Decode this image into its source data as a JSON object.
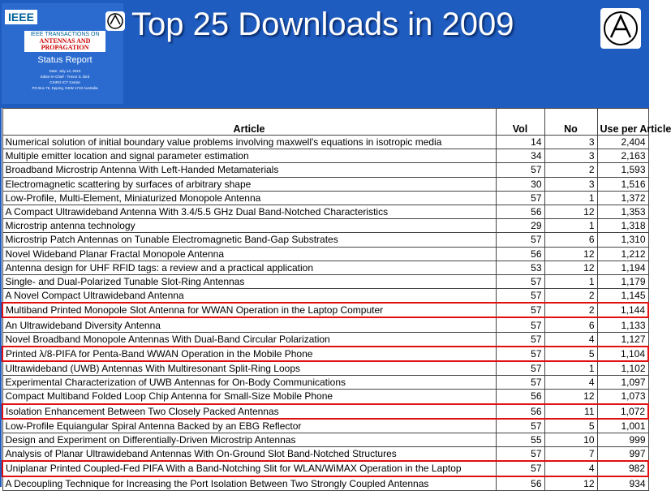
{
  "header": {
    "logo": "IEEE",
    "journal": "IEEE TRANSACTIONS ON",
    "journal_name_line1": "ANTENNAS AND",
    "journal_name_line2": "PROPAGATION",
    "report": "Status Report",
    "details": [
      "Date: July 14, 2010",
      "Editor-in-Chief - Trevor S. Bird",
      "CSIRO ICT Centre",
      "PO Box 76, Epping, NSW 1710 Australia"
    ],
    "title": "Top 25 Downloads in 2009"
  },
  "table": {
    "columns": [
      "Article",
      "Vol",
      "No",
      "Use per Article"
    ],
    "highlight_rows": [
      12,
      15,
      19,
      23
    ],
    "rows": [
      [
        "Numerical solution of initial boundary value problems involving maxwell's equations in isotropic media",
        14,
        3,
        "2,404"
      ],
      [
        "Multiple emitter location and signal parameter estimation",
        34,
        3,
        "2,163"
      ],
      [
        "Broadband Microstrip Antenna With Left-Handed Metamaterials",
        57,
        2,
        "1,593"
      ],
      [
        "Electromagnetic scattering by surfaces of arbitrary shape",
        30,
        3,
        "1,516"
      ],
      [
        "Low-Profile, Multi-Element, Miniaturized Monopole Antenna",
        57,
        1,
        "1,372"
      ],
      [
        "A Compact Ultrawideband Antenna With 3.4/5.5 GHz Dual Band-Notched Characteristics",
        56,
        12,
        "1,353"
      ],
      [
        "Microstrip antenna technology",
        29,
        1,
        "1,318"
      ],
      [
        "Microstrip Patch Antennas on Tunable Electromagnetic Band-Gap Substrates",
        57,
        6,
        "1,310"
      ],
      [
        "Novel Wideband Planar Fractal Monopole Antenna",
        56,
        12,
        "1,212"
      ],
      [
        "Antenna design for UHF RFID tags: a review and a practical application",
        53,
        12,
        "1,194"
      ],
      [
        "Single- and Dual-Polarized Tunable Slot-Ring Antennas",
        57,
        1,
        "1,179"
      ],
      [
        "A Novel Compact Ultrawideband Antenna",
        57,
        2,
        "1,145"
      ],
      [
        "Multiband Printed Monopole Slot Antenna for WWAN Operation in the Laptop Computer",
        57,
        2,
        "1,144"
      ],
      [
        "An Ultrawideband Diversity Antenna",
        57,
        6,
        "1,133"
      ],
      [
        "Novel Broadband Monopole Antennas With Dual-Band Circular Polarization",
        57,
        4,
        "1,127"
      ],
      [
        "Printed λ/8-PIFA for Penta-Band WWAN Operation in the Mobile Phone",
        57,
        5,
        "1,104"
      ],
      [
        "Ultrawideband (UWB) Antennas With Multiresonant Split-Ring Loops",
        57,
        1,
        "1,102"
      ],
      [
        "Experimental Characterization of UWB Antennas for On-Body Communications",
        57,
        4,
        "1,097"
      ],
      [
        "Compact Multiband Folded Loop Chip Antenna for Small-Size Mobile Phone",
        56,
        12,
        "1,073"
      ],
      [
        "Isolation Enhancement Between Two Closely Packed Antennas",
        56,
        11,
        "1,072"
      ],
      [
        "Low-Profile Equiangular Spiral Antenna Backed by an EBG Reflector",
        57,
        5,
        "1,001"
      ],
      [
        "Design and Experiment on Differentially-Driven Microstrip Antennas",
        55,
        10,
        "999"
      ],
      [
        "Analysis of Planar Ultrawideband Antennas With On-Ground Slot Band-Notched Structures",
        57,
        7,
        "997"
      ],
      [
        "Uniplanar Printed Coupled-Fed PIFA With a Band-Notching Slit for WLAN/WiMAX Operation in the Laptop",
        57,
        4,
        "982"
      ],
      [
        "A Decoupling Technique for Increasing the Port Isolation Between Two Strongly Coupled Antennas",
        56,
        12,
        "934"
      ]
    ]
  }
}
